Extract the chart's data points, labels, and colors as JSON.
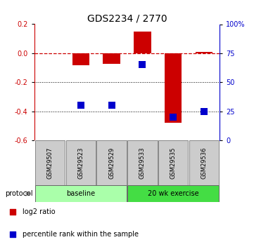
{
  "title": "GDS2234 / 2770",
  "samples": [
    "GSM29507",
    "GSM29523",
    "GSM29529",
    "GSM29533",
    "GSM29535",
    "GSM29536"
  ],
  "log2_ratio": [
    0.0,
    -0.085,
    -0.075,
    0.15,
    -0.48,
    0.01
  ],
  "percentile_rank": [
    null,
    30,
    30,
    65,
    20,
    25
  ],
  "bar_color": "#cc0000",
  "dot_color": "#0000cc",
  "ylim_left": [
    -0.6,
    0.2
  ],
  "ylim_right": [
    0,
    100
  ],
  "yticks_left": [
    0.2,
    0.0,
    -0.2,
    -0.4,
    -0.6
  ],
  "yticks_right": [
    100,
    75,
    50,
    25,
    0
  ],
  "dotted_lines": [
    -0.2,
    -0.4
  ],
  "groups": [
    {
      "label": "baseline",
      "start": 0,
      "end": 3,
      "color": "#aaffaa"
    },
    {
      "label": "20 wk exercise",
      "start": 3,
      "end": 6,
      "color": "#44dd44"
    }
  ],
  "protocol_label": "protocol",
  "legend_items": [
    {
      "label": "log2 ratio",
      "color": "#cc0000"
    },
    {
      "label": "percentile rank within the sample",
      "color": "#0000cc"
    }
  ],
  "bar_width": 0.55,
  "dot_size": 45,
  "background_color": "#ffffff",
  "sample_box_color": "#cccccc",
  "sample_box_edge": "#888888"
}
